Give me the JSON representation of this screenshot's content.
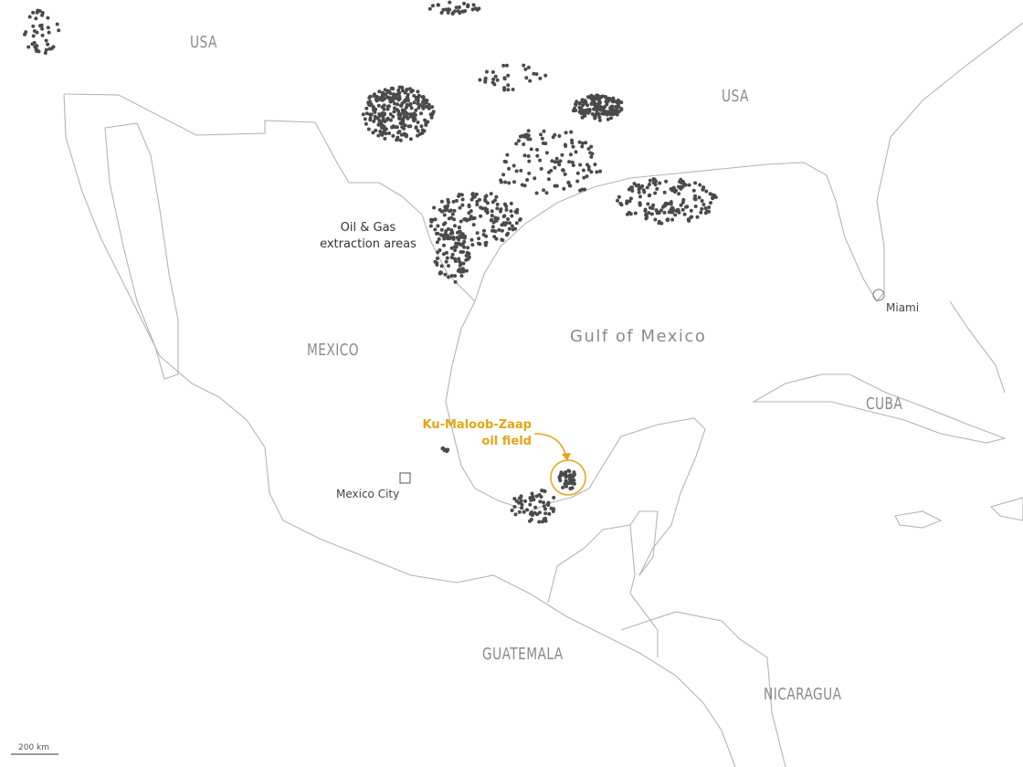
{
  "map": {
    "countries": [
      "USA",
      "USA",
      "MEXICO",
      "CUBA",
      "GUATEMALA",
      "NICARAGUA"
    ],
    "sea": "Gulf of Mexico",
    "cities": [
      "Miami",
      "Mexico City"
    ],
    "annotation": {
      "line1": "Oil & Gas",
      "line2": "extraction areas"
    },
    "highlight": {
      "line1": "Ku-Maloob-Zaap",
      "line2": "oil field",
      "color": "#e2a516"
    },
    "scale_bar": "200 km",
    "colors": {
      "land_border": "#b4b4b4",
      "extraction_marker": "#4a4a4a",
      "background": "#ffffff"
    }
  }
}
